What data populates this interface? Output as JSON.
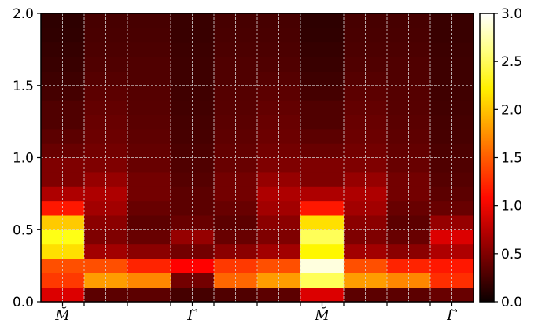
{
  "chart_data": {
    "type": "heatmap",
    "title": "",
    "xlabel": "",
    "ylabel": "",
    "ylim": [
      0,
      2.0
    ],
    "y_ticks": [
      "0.0",
      "0.5",
      "1.0",
      "1.5",
      "2.0"
    ],
    "x_tick_labels": [
      "M̆",
      "Γ̆",
      "M̆",
      "Γ̆"
    ],
    "x_tick_label_positions": [
      0.5,
      3.5,
      6.5,
      9.5
    ],
    "x_columns": 10,
    "grid": true,
    "colormap": "hot",
    "colorbar": {
      "vmin": 0.0,
      "vmax": 3.0,
      "ticks": [
        "0.0",
        "0.5",
        "1.0",
        "1.5",
        "2.0",
        "2.5",
        "3.0"
      ]
    },
    "y_bins": 20,
    "intensity_columns": [
      [
        0.9,
        1.35,
        1.45,
        2.1,
        2.3,
        2.0,
        1.2,
        0.7,
        0.5,
        0.5,
        0.4,
        0.35,
        0.3,
        0.3,
        0.25,
        0.22,
        0.2,
        0.18,
        0.16,
        0.15
      ],
      [
        0.35,
        1.8,
        1.45,
        0.65,
        0.5,
        0.55,
        0.65,
        0.7,
        0.6,
        0.5,
        0.45,
        0.42,
        0.4,
        0.38,
        0.35,
        0.32,
        0.3,
        0.28,
        0.27,
        0.26
      ],
      [
        0.35,
        1.7,
        1.25,
        0.55,
        0.4,
        0.35,
        0.4,
        0.45,
        0.45,
        0.4,
        0.38,
        0.36,
        0.34,
        0.33,
        0.32,
        0.3,
        0.3,
        0.28,
        0.27,
        0.26
      ],
      [
        0.25,
        0.45,
        1.1,
        0.45,
        0.6,
        0.4,
        0.35,
        0.35,
        0.32,
        0.3,
        0.28,
        0.26,
        0.25,
        0.24,
        0.23,
        0.22,
        0.22,
        0.21,
        0.2,
        0.2
      ],
      [
        0.3,
        1.55,
        1.35,
        0.55,
        0.4,
        0.35,
        0.4,
        0.45,
        0.45,
        0.4,
        0.38,
        0.36,
        0.34,
        0.33,
        0.32,
        0.3,
        0.3,
        0.28,
        0.27,
        0.26
      ],
      [
        0.35,
        1.8,
        1.45,
        0.65,
        0.5,
        0.55,
        0.65,
        0.7,
        0.6,
        0.5,
        0.45,
        0.42,
        0.4,
        0.38,
        0.35,
        0.32,
        0.3,
        0.28,
        0.27,
        0.26
      ],
      [
        0.9,
        2.5,
        2.9,
        2.2,
        2.5,
        2.1,
        1.2,
        0.7,
        0.5,
        0.5,
        0.4,
        0.35,
        0.3,
        0.3,
        0.25,
        0.22,
        0.2,
        0.18,
        0.16,
        0.15
      ],
      [
        0.35,
        1.8,
        1.45,
        0.65,
        0.5,
        0.55,
        0.65,
        0.7,
        0.6,
        0.5,
        0.45,
        0.42,
        0.4,
        0.38,
        0.35,
        0.32,
        0.3,
        0.28,
        0.27,
        0.26
      ],
      [
        0.35,
        1.7,
        1.25,
        0.55,
        0.4,
        0.35,
        0.4,
        0.45,
        0.45,
        0.4,
        0.38,
        0.36,
        0.34,
        0.33,
        0.32,
        0.3,
        0.3,
        0.28,
        0.27,
        0.26
      ],
      [
        0.4,
        1.3,
        1.2,
        0.7,
        0.9,
        0.6,
        0.4,
        0.35,
        0.32,
        0.3,
        0.28,
        0.26,
        0.25,
        0.24,
        0.23,
        0.22,
        0.22,
        0.21,
        0.2,
        0.2
      ]
    ]
  }
}
